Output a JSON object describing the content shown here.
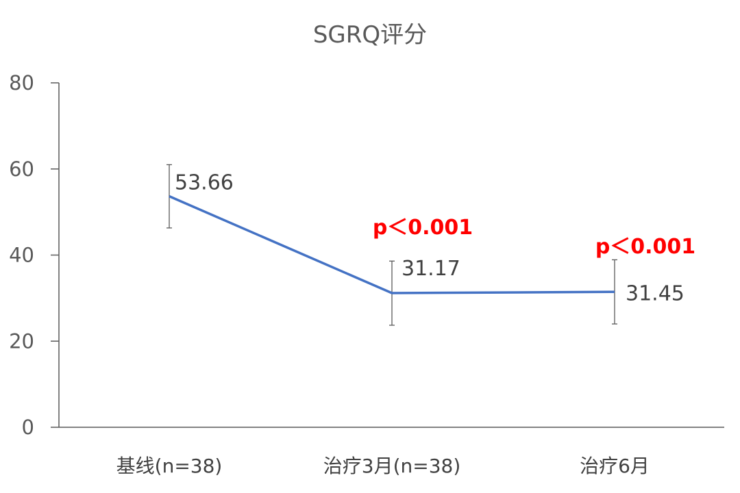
{
  "chart_data": {
    "type": "line",
    "title": "SGRQ评分",
    "xlabel": "",
    "ylabel": "",
    "categories": [
      "基线(n=38)",
      "治疗3月(n=38)",
      "治疗6月"
    ],
    "series": [
      {
        "values": [
          53.66,
          31.17,
          31.45
        ],
        "error_low": [
          46.3,
          23.7,
          24.0
        ],
        "error_high": [
          61.0,
          38.6,
          38.9
        ],
        "data_labels": [
          "53.66",
          "31.17",
          "31.45"
        ],
        "color": "#4472C4"
      }
    ],
    "annotations": [
      "",
      "p＜0.001",
      "p＜0.001"
    ],
    "annotation_color": "#FF0000",
    "ylim": [
      0,
      80
    ],
    "yticks": [
      0,
      20,
      40,
      60,
      80
    ],
    "ytick_labels": [
      "0",
      "20",
      "40",
      "60",
      "80"
    ],
    "grid": false,
    "legend": "none"
  }
}
